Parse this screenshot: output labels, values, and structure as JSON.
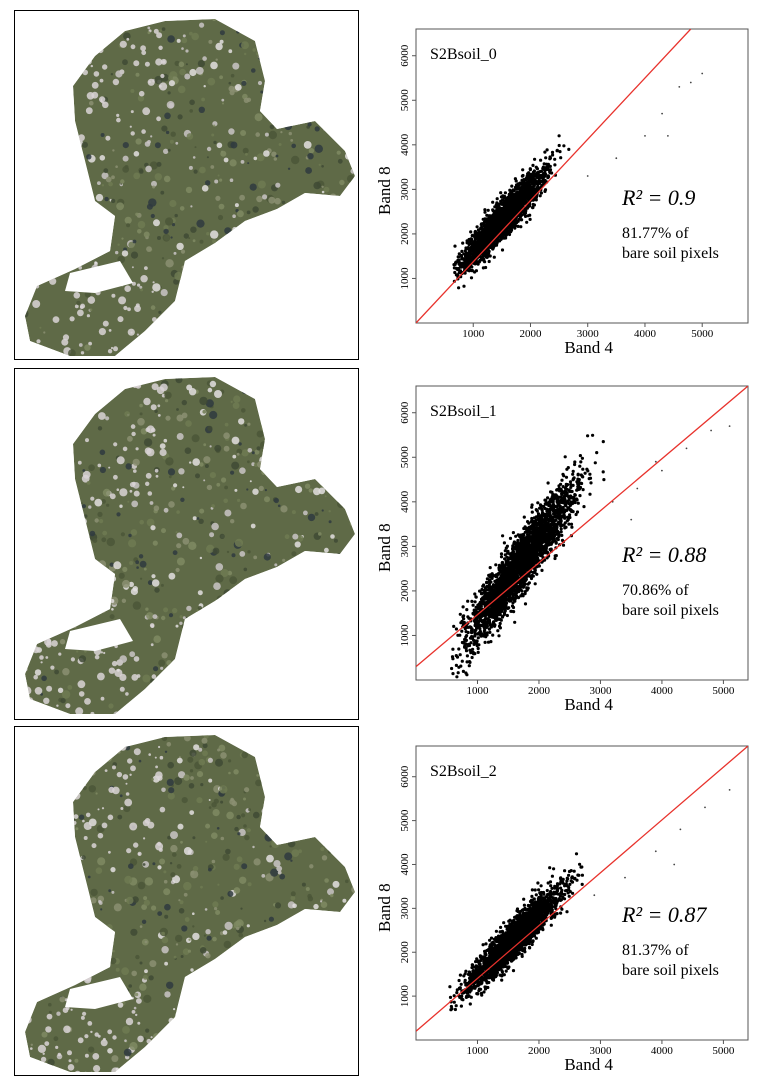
{
  "colors": {
    "regression_line": "#e8322c",
    "points": "#000000",
    "map_vegetation": "#5f6a47",
    "map_bare": "#d9d4d6"
  },
  "chart_data": [
    {
      "type": "scatter",
      "title": "S2Bsoil_0",
      "xlabel": "Band 4",
      "ylabel": "Band 8",
      "xlim": [
        0,
        5800
      ],
      "ylim": [
        0,
        6600
      ],
      "xticks": [
        "1000",
        "2000",
        "3000",
        "4000",
        "5000"
      ],
      "yticks": [
        "1000",
        "2000",
        "3000",
        "4000",
        "5000",
        "6000"
      ],
      "r2_label": "R² = 0.9",
      "r2": 0.9,
      "note_line1": "81.77% of",
      "note_line2": "bare soil pixels",
      "bare_soil_pixel_percent": 81.77,
      "regression_line": {
        "x": [
          0,
          4800
        ],
        "y": [
          0,
          6600
        ]
      },
      "point_cloud": {
        "x_center": 1500,
        "y_center": 2300,
        "x_extent": [
          800,
          2600
        ],
        "y_extent": [
          800,
          3300
        ]
      },
      "outliers": [
        [
          3000,
          3300
        ],
        [
          3500,
          3700
        ],
        [
          4000,
          4200
        ],
        [
          4300,
          4700
        ],
        [
          4600,
          5300
        ],
        [
          4800,
          5400
        ],
        [
          5000,
          5600
        ],
        [
          4400,
          4200
        ]
      ]
    },
    {
      "type": "scatter",
      "title": "S2Bsoil_1",
      "xlabel": "Band 4",
      "ylabel": "Band 8",
      "xlim": [
        0,
        5400
      ],
      "ylim": [
        0,
        6600
      ],
      "xticks": [
        "1000",
        "2000",
        "3000",
        "4000",
        "5000"
      ],
      "yticks": [
        "1000",
        "2000",
        "3000",
        "4000",
        "5000",
        "6000"
      ],
      "r2_label": "R² = 0.88",
      "r2": 0.88,
      "note_line1": "70.86% of",
      "note_line2": "bare soil pixels",
      "bare_soil_pixel_percent": 70.86,
      "regression_line": {
        "x": [
          0,
          5400
        ],
        "y": [
          300,
          6600
        ]
      },
      "point_cloud": {
        "x_center": 1700,
        "y_center": 2600,
        "x_extent": [
          700,
          3000
        ],
        "y_extent": [
          700,
          4900
        ]
      },
      "outliers": [
        [
          3200,
          4000
        ],
        [
          3600,
          4300
        ],
        [
          4000,
          4700
        ],
        [
          4400,
          5200
        ],
        [
          4800,
          5600
        ],
        [
          5100,
          5700
        ],
        [
          3900,
          4900
        ],
        [
          3500,
          3600
        ]
      ]
    },
    {
      "type": "scatter",
      "title": "S2Bsoil_2",
      "xlabel": "Band 4",
      "ylabel": "Band 8",
      "xlim": [
        0,
        5400
      ],
      "ylim": [
        0,
        6700
      ],
      "xticks": [
        "1000",
        "2000",
        "3000",
        "4000",
        "5000"
      ],
      "yticks": [
        "1000",
        "2000",
        "3000",
        "4000",
        "5000",
        "6000"
      ],
      "r2_label": "R² = 0.87",
      "r2": 0.87,
      "note_line1": "81.37% of",
      "note_line2": "bare soil pixels",
      "bare_soil_pixel_percent": 81.37,
      "regression_line": {
        "x": [
          0,
          5400
        ],
        "y": [
          200,
          6700
        ]
      },
      "point_cloud": {
        "x_center": 1600,
        "y_center": 2300,
        "x_extent": [
          700,
          2600
        ],
        "y_extent": [
          700,
          3400
        ]
      },
      "outliers": [
        [
          2900,
          3300
        ],
        [
          3400,
          3700
        ],
        [
          3900,
          4300
        ],
        [
          4300,
          4800
        ],
        [
          4700,
          5300
        ],
        [
          5100,
          5700
        ],
        [
          4200,
          4000
        ]
      ]
    }
  ]
}
